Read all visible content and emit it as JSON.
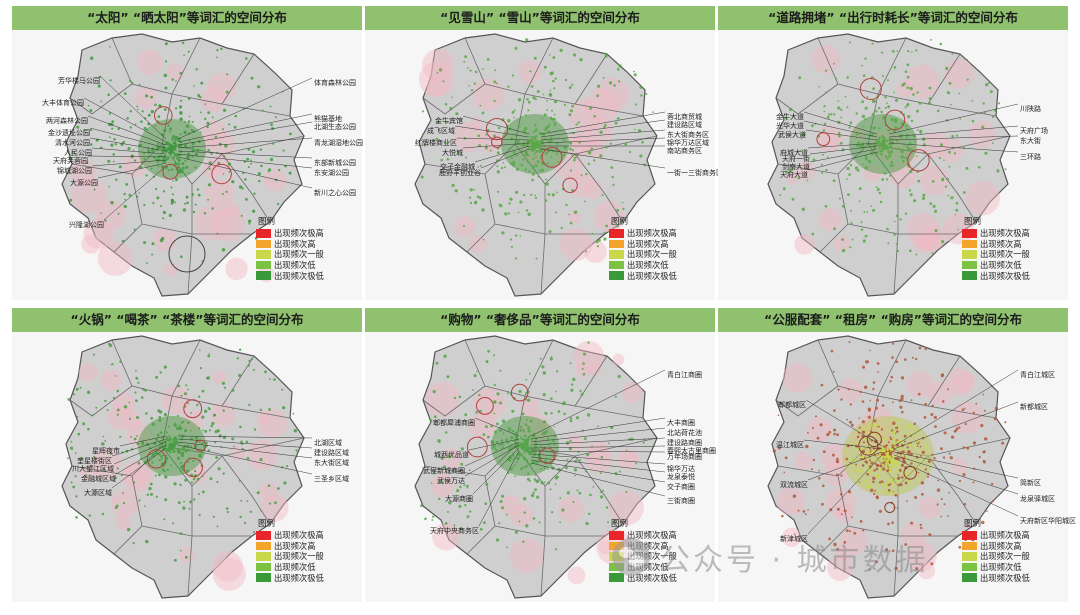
{
  "legend_title": "图例",
  "legend_items": [
    {
      "label": "出现频次极高",
      "color": "#e8262a"
    },
    {
      "label": "出现频次高",
      "color": "#f3a42b"
    },
    {
      "label": "出现频次一般",
      "color": "#c8d84a"
    },
    {
      "label": "出现频次低",
      "color": "#7bc242"
    },
    {
      "label": "出现频次极低",
      "color": "#3a9a3a"
    }
  ],
  "panels": [
    {
      "title": "“太阳” “晒太阳”等词汇的空间分布",
      "dot_color": "#3f9a3f",
      "left_labels": [
        "芳华楼马公园",
        "大丰体育公园",
        "两河森林公园",
        "金沙遗址公园",
        "清水河公园",
        "人民公园",
        "天府芙蓉园",
        "锦城湖公园",
        "大源公园",
        "兴隆湖公园"
      ],
      "right_labels": [
        "体育森林公园",
        "熊猫基地",
        "北湖生态公园",
        "青龙湖湿地公园",
        "东部新城公园",
        "东安湖公园",
        "新川之心公园"
      ]
    },
    {
      "title": "“见雪山” “雪山”等词汇的空间分布",
      "dot_color": "#58a848",
      "left_labels": [
        "金牛宾馆",
        "成飞区域",
        "红牌楼商业区",
        "大悦城",
        "交子金融城",
        "鹿野羊创业谷"
      ],
      "right_labels": [
        "蓉北商贸城",
        "建设路区域",
        "东大街商务区",
        "锦华万达区域",
        "南站商务区",
        "一街一三街商务区"
      ]
    },
    {
      "title": "“道路拥堵” “出行时耗长”等词汇的空间分布",
      "dot_color": "#5aa84a",
      "left_labels": [
        "金牛大道",
        "光华大道",
        "武侯大道",
        "府城大道",
        "天府一街",
        "剑南大道",
        "天府大道"
      ],
      "right_labels": [
        "川陕路",
        "天府广场",
        "东大街",
        "三环路"
      ]
    },
    {
      "title": "“火锅” “喝茶” “茶楼”等词汇的空间分布",
      "dot_color": "#4a9e44",
      "left_labels": [
        "星辉夜市",
        "奎星楼街区",
        "川大望江区域",
        "金融城区域",
        "大源区域"
      ],
      "right_labels": [
        "北湖区域",
        "建设路区域",
        "东大街区域",
        "三圣乡区域"
      ]
    },
    {
      "title": "“购物” “奢侈品”等词汇的空间分布",
      "dot_color": "#55a64a",
      "left_labels": [
        "郫都犀浦商圈",
        "城西优品道",
        "武侯新城商圈",
        "武侯万达",
        "大源商圈",
        "天府中央商务区"
      ],
      "right_labels": [
        "青白江商圈",
        "大丰商圈",
        "北站荷花池",
        "建设路商圈",
        "春熙太古里商圈",
        "万年场商圈",
        "锦华万达",
        "龙泉泰悦",
        "交子商圈",
        "三街商圈"
      ]
    },
    {
      "title": "“公服配套” “租房” “购房”等词汇的空间分布",
      "dot_color": "#b0583c",
      "left_labels": [
        "郫都城区",
        "温江城区",
        "双流城区",
        "新津城区"
      ],
      "right_labels": [
        "青白江城区",
        "新都城区",
        "简新区",
        "龙泉驿城区",
        "天府新区华阳城区"
      ]
    }
  ],
  "watermark": "公众号 · 城市数据"
}
